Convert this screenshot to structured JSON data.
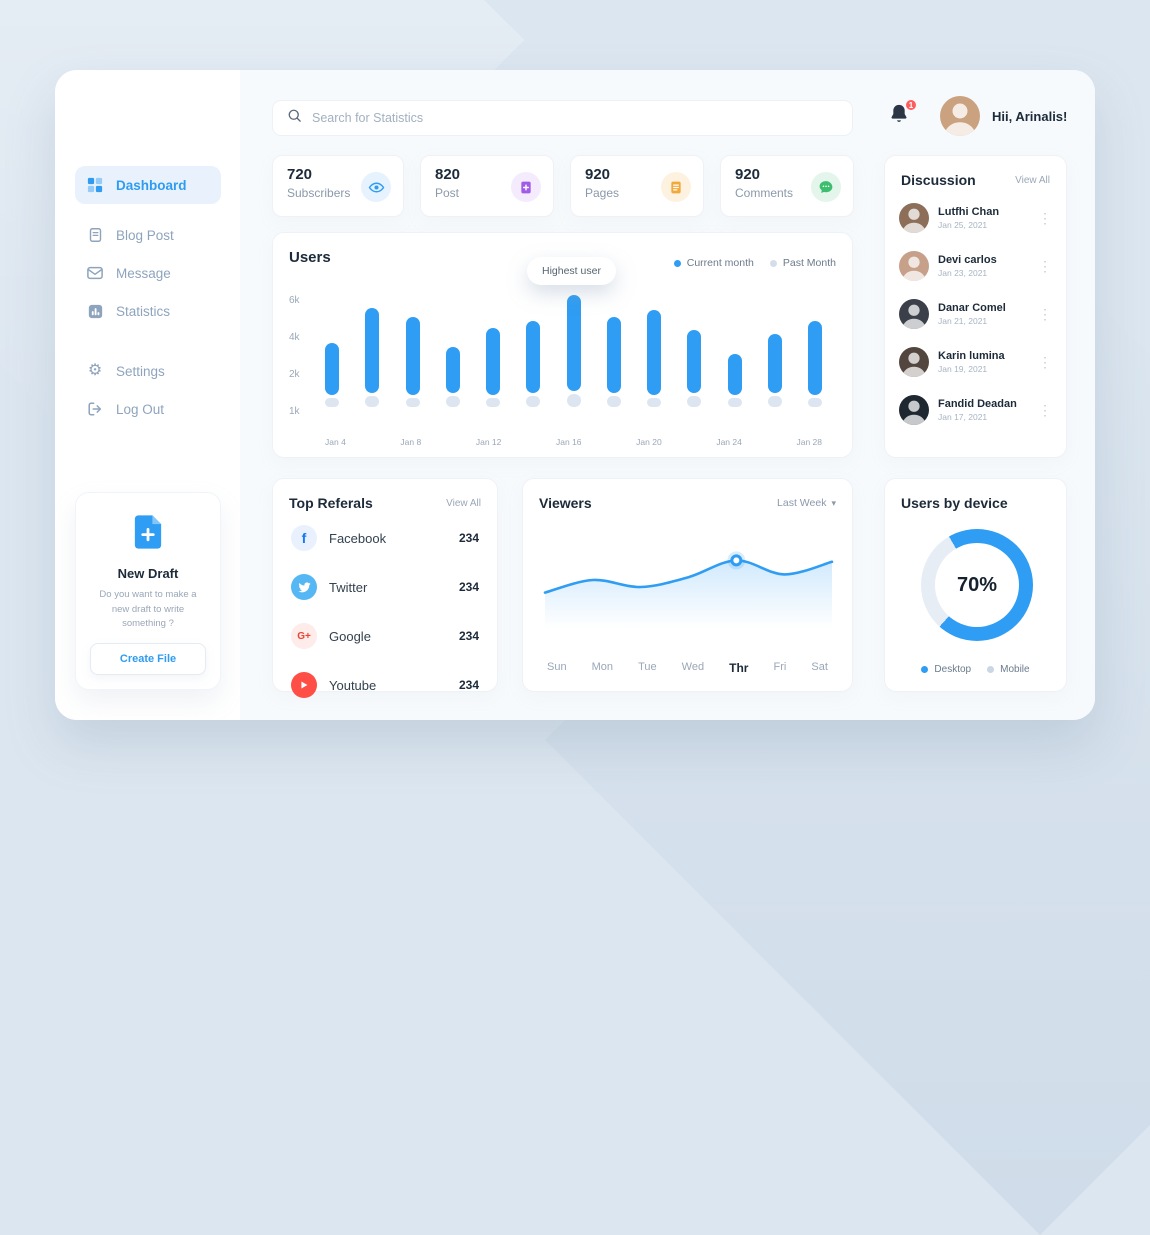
{
  "header": {
    "search_placeholder": "Search for Statistics",
    "greeting": "Hii, Arinalis!",
    "notification_count": "1"
  },
  "sidebar": {
    "items": [
      {
        "label": "Dashboard",
        "icon": "grid-icon",
        "active": true
      },
      {
        "label": "Blog Post",
        "icon": "document-icon",
        "active": false
      },
      {
        "label": "Message",
        "icon": "envelope-icon",
        "active": false
      },
      {
        "label": "Statistics",
        "icon": "bar-chart-icon",
        "active": false
      },
      {
        "label": "Settings",
        "icon": "gear-icon",
        "active": false
      },
      {
        "label": "Log Out",
        "icon": "logout-icon",
        "active": false
      }
    ],
    "new_draft": {
      "title": "New Draft",
      "description": "Do you want to make a new draft to write something ?",
      "button_label": "Create File"
    }
  },
  "stats": {
    "cards": [
      {
        "value": "720",
        "label": "Subscribers",
        "icon": "eye-icon",
        "color": "#2e9df3"
      },
      {
        "value": "820",
        "label": "Post",
        "icon": "post-icon",
        "color": "#a05ce8"
      },
      {
        "value": "920",
        "label": "Pages",
        "icon": "pages-icon",
        "color": "#f2a93b"
      },
      {
        "value": "920",
        "label": "Comments",
        "icon": "comments-icon",
        "color": "#3dbd6e"
      }
    ]
  },
  "users_chart": {
    "type": "bar",
    "title": "Users",
    "tooltip": "Highest user",
    "legend": [
      {
        "label": "Current month",
        "color": "#2e9df3"
      },
      {
        "label": "Past Month",
        "color": "#d4deea"
      }
    ],
    "y_ticks": [
      "6k",
      "4k",
      "2k",
      "1k"
    ],
    "x_ticks": [
      "Jan 4",
      "Jan 8",
      "Jan 12",
      "Jan 16",
      "Jan 20",
      "Jan 24",
      "Jan 28"
    ],
    "series": [
      {
        "name": "Current month",
        "values_k": [
          2.8,
          4.6,
          4.2,
          2.5,
          3.6,
          3.9,
          5.2,
          4.1,
          4.6,
          3.4,
          2.2,
          3.2,
          4.0
        ]
      },
      {
        "name": "Past Month",
        "values_k": [
          0.5,
          0.6,
          0.5,
          0.6,
          0.5,
          0.6,
          0.7,
          0.6,
          0.5,
          0.6,
          0.5,
          0.6,
          0.5
        ]
      }
    ],
    "highlight_index": 6
  },
  "discussion": {
    "title": "Discussion",
    "view_all": "View All",
    "items": [
      {
        "name": "Lutfhi Chan",
        "date": "Jan 25, 2021"
      },
      {
        "name": "Devi carlos",
        "date": "Jan 23, 2021"
      },
      {
        "name": "Danar Comel",
        "date": "Jan 21, 2021"
      },
      {
        "name": "Karin lumina",
        "date": "Jan 19, 2021"
      },
      {
        "name": "Fandid Deadan",
        "date": "Jan 17, 2021"
      }
    ]
  },
  "referrals": {
    "title": "Top Referals",
    "view_all": "View All",
    "items": [
      {
        "name": "Facebook",
        "value": "234",
        "icon": "facebook-icon"
      },
      {
        "name": "Twitter",
        "value": "234",
        "icon": "twitter-icon"
      },
      {
        "name": "Google",
        "value": "234",
        "icon": "google-plus-icon"
      },
      {
        "name": "Youtube",
        "value": "234",
        "icon": "youtube-icon"
      }
    ]
  },
  "viewers": {
    "type": "line",
    "title": "Viewers",
    "filter_label": "Last Week",
    "days": [
      "Sun",
      "Mon",
      "Tue",
      "Wed",
      "Thr",
      "Fri",
      "Sat"
    ],
    "highlight_day": "Thr",
    "chart": {
      "values": [
        32,
        50,
        40,
        54,
        78,
        58,
        76
      ],
      "highlight_index": 4
    }
  },
  "device": {
    "type": "pie",
    "title": "Users by device",
    "percent_label": "70%",
    "percent": 70,
    "track_color": "#e6edf5",
    "legend": [
      {
        "label": "Desktop",
        "color": "#2e9df3"
      },
      {
        "label": "Mobile",
        "color": "#c9d6e4"
      }
    ]
  }
}
